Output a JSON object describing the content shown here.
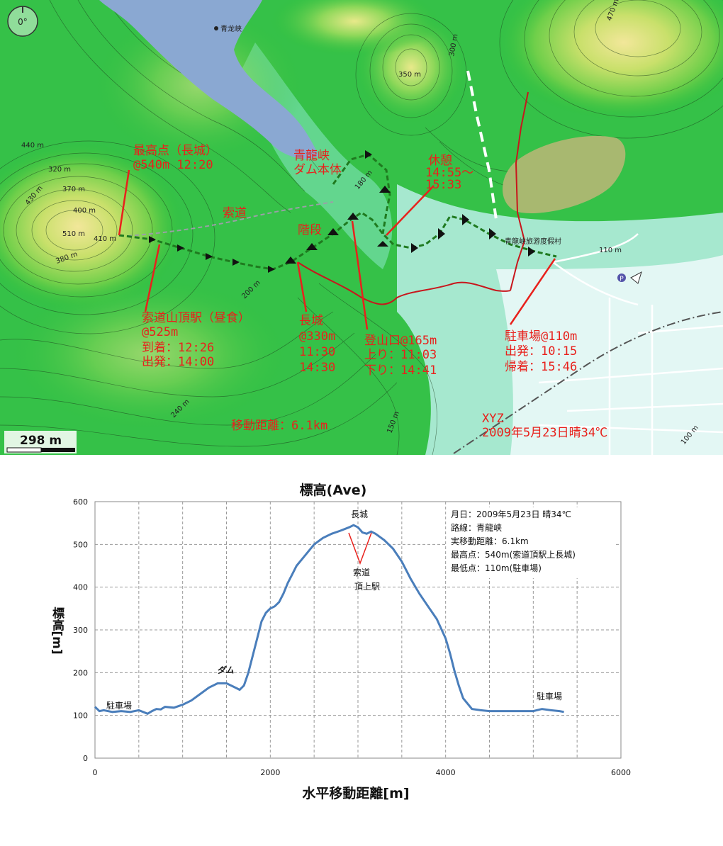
{
  "map": {
    "compass": "0°",
    "scale_label": "298 m",
    "place_names": {
      "seiryukyo": "青龙峡",
      "resort": "青龍峡旅游度假村",
      "parking_icon": "P"
    },
    "contour_labels": {
      "c440": "440 m",
      "c320": "320 m",
      "c370": "370 m",
      "c400": "400 m",
      "c510": "510 m",
      "c410": "410 m",
      "c350": "350 m",
      "c470": "470 m",
      "c110": "110 m",
      "c100": "100 m",
      "c150": "150 m",
      "c240": "240 m",
      "c200": "200 m",
      "c180": "180 m",
      "c430": "430 m",
      "c380": "380 m",
      "c300": "300 m"
    },
    "annotations": {
      "summit": [
        "最高点（長城）",
        "@540m  12:20"
      ],
      "dam": [
        "青龍峡",
        "ダム本体"
      ],
      "rest": [
        "休憩",
        "14:55～",
        "15:33"
      ],
      "ropeway": "索道",
      "stairs": "階段",
      "top_station": [
        "索道山頂駅（昼食）",
        "@525m",
        "到着：12:26",
        "出発：14:00"
      ],
      "great_wall": [
        "長城",
        "@330m",
        "11:30",
        "14:30"
      ],
      "trailhead": [
        "登山口@165m",
        "上り：11:03",
        "下り：14:41"
      ],
      "parking": [
        "駐車場@110m",
        "出発：10:15",
        "帰着：15:46"
      ],
      "distance": "移動距離：6.1km",
      "author": "XYZ",
      "date_weather": "2009年5月23日晴34℃"
    },
    "colors": {
      "annotation": "#e8211c",
      "route": "#1f7a1f",
      "water": "#8aa8d2",
      "lake": "#a8b870"
    }
  },
  "chart_data": {
    "type": "line",
    "title": "標高(Ave)",
    "xlabel": "水平移動距離[m]",
    "ylabel": "標高[m]",
    "xlim": [
      0,
      6000
    ],
    "ylim": [
      0,
      600
    ],
    "xticks": [
      0,
      2000,
      4000,
      6000
    ],
    "yticks": [
      0,
      100,
      200,
      300,
      400,
      500,
      600
    ],
    "grid": "on",
    "series": [
      {
        "name": "",
        "color": "#4a7ebb",
        "x": [
          0,
          50,
          100,
          200,
          300,
          400,
          500,
          550,
          600,
          650,
          700,
          750,
          800,
          900,
          1000,
          1100,
          1200,
          1300,
          1400,
          1500,
          1600,
          1650,
          1700,
          1750,
          1800,
          1850,
          1900,
          1950,
          2000,
          2050,
          2100,
          2150,
          2200,
          2250,
          2300,
          2400,
          2500,
          2600,
          2700,
          2800,
          2900,
          2950,
          3000,
          3050,
          3100,
          3150,
          3200,
          3300,
          3400,
          3500,
          3600,
          3700,
          3800,
          3900,
          4000,
          4050,
          4100,
          4150,
          4200,
          4300,
          4400,
          4500,
          4600,
          4700,
          4800,
          4900,
          5000,
          5100,
          5200,
          5300,
          5350
        ],
        "y": [
          120,
          110,
          112,
          108,
          110,
          108,
          112,
          108,
          104,
          110,
          115,
          114,
          120,
          118,
          125,
          135,
          150,
          165,
          175,
          175,
          165,
          160,
          170,
          200,
          240,
          280,
          320,
          340,
          350,
          355,
          365,
          385,
          410,
          430,
          450,
          475,
          500,
          515,
          525,
          532,
          540,
          545,
          540,
          528,
          525,
          530,
          525,
          510,
          490,
          460,
          420,
          385,
          355,
          325,
          280,
          245,
          205,
          170,
          140,
          115,
          112,
          110,
          110,
          110,
          110,
          110,
          110,
          115,
          112,
          110,
          108
        ]
      }
    ],
    "annotations": {
      "dam": "ダム",
      "parking_left": "駐車場",
      "parking_right": "駐車場",
      "great_wall": "長城",
      "ropeway": "索道",
      "top_station": "頂上駅"
    },
    "info_box": [
      "月日：2009年5月23日 晴34℃",
      "路線：青龍峡",
      "実移動距離：6.1km",
      "最高点：540m(索道頂駅上長城)",
      "最低点：110m(駐車場)"
    ]
  }
}
